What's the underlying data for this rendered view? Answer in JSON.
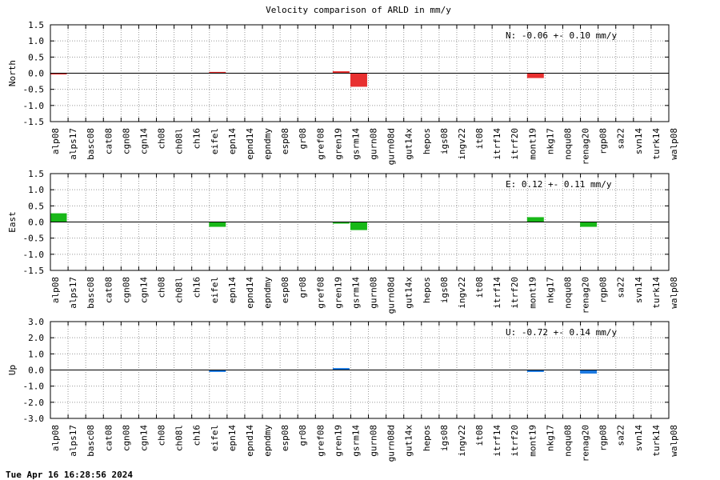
{
  "title": "Velocity comparison of ARLD in mm/y",
  "timestamp": "Tue Apr 16 16:28:56 2024",
  "chart_data": [
    {
      "type": "bar",
      "ylabel": "North",
      "summary": "N:  -0.06 +-  0.10 mm/y",
      "color": "#e83030",
      "ylim": [
        -1.5,
        1.5
      ],
      "yticks": [
        -1.5,
        -1.0,
        -0.5,
        0.0,
        0.5,
        1.0,
        1.5
      ],
      "ytick_labels": [
        "-1.5",
        "-1.0",
        "-0.5",
        "0.0",
        "0.5",
        "1.0",
        "1.5"
      ],
      "grid": true,
      "categories": [
        "alp08",
        "alps17",
        "basc08",
        "cat08",
        "cgn08",
        "cgn14",
        "ch08",
        "ch08l",
        "ch16",
        "eifel",
        "epn14",
        "epnd14",
        "epndmy",
        "esp08",
        "gr08",
        "gref08",
        "gren19",
        "gsrm14",
        "gurn08",
        "gurn08d",
        "gut14x",
        "hepos",
        "igs08",
        "ingv22",
        "it08",
        "itrf14",
        "itrf20",
        "mont19",
        "nkg17",
        "noqu08",
        "renag20",
        "rgp08",
        "sa22",
        "svn14",
        "turk14",
        "walp08"
      ],
      "values": [
        -0.04,
        0,
        0,
        0,
        0,
        0,
        0,
        0,
        0,
        0.04,
        0,
        0,
        0,
        0,
        0,
        0,
        0.06,
        -0.42,
        0,
        0,
        0,
        0,
        0,
        0,
        0,
        0,
        0,
        -0.15,
        0,
        0,
        0,
        0,
        0,
        0,
        0,
        0
      ]
    },
    {
      "type": "bar",
      "ylabel": "East",
      "summary": "E:   0.12 +-  0.11 mm/y",
      "color": "#18b818",
      "ylim": [
        -1.5,
        1.5
      ],
      "yticks": [
        -1.5,
        -1.0,
        -0.5,
        0.0,
        0.5,
        1.0,
        1.5
      ],
      "ytick_labels": [
        "-1.5",
        "-1.0",
        "-0.5",
        "0.0",
        "0.5",
        "1.0",
        "1.5"
      ],
      "grid": true,
      "categories": [
        "alp08",
        "alps17",
        "basc08",
        "cat08",
        "cgn08",
        "cgn14",
        "ch08",
        "ch08l",
        "ch16",
        "eifel",
        "epn14",
        "epnd14",
        "epndmy",
        "esp08",
        "gr08",
        "gref08",
        "gren19",
        "gsrm14",
        "gurn08",
        "gurn08d",
        "gut14x",
        "hepos",
        "igs08",
        "ingv22",
        "it08",
        "itrf14",
        "itrf20",
        "mont19",
        "nkg17",
        "noqu08",
        "renag20",
        "rgp08",
        "sa22",
        "svn14",
        "turk14",
        "walp08"
      ],
      "values": [
        0.27,
        0,
        0,
        0,
        0,
        0,
        0,
        0,
        0,
        -0.15,
        0,
        0,
        0,
        0,
        0,
        0,
        -0.05,
        -0.25,
        0,
        0,
        0,
        0,
        0,
        0,
        0,
        0,
        0,
        0.15,
        0,
        0,
        -0.15,
        0,
        0,
        0,
        0,
        0
      ]
    },
    {
      "type": "bar",
      "ylabel": "Up",
      "summary": "U:  -0.72 +-  0.14 mm/y",
      "color": "#1a78e0",
      "ylim": [
        -3.0,
        3.0
      ],
      "yticks": [
        -3.0,
        -2.0,
        -1.0,
        0.0,
        1.0,
        2.0,
        3.0
      ],
      "ytick_labels": [
        "-3.0",
        "-2.0",
        "-1.0",
        "0.0",
        "1.0",
        "2.0",
        "3.0"
      ],
      "grid": true,
      "categories": [
        "alp08",
        "alps17",
        "basc08",
        "cat08",
        "cgn08",
        "cgn14",
        "ch08",
        "ch08l",
        "ch16",
        "eifel",
        "epn14",
        "epnd14",
        "epndmy",
        "esp08",
        "gr08",
        "gref08",
        "gren19",
        "gsrm14",
        "gurn08",
        "gurn08d",
        "gut14x",
        "hepos",
        "igs08",
        "ingv22",
        "it08",
        "itrf14",
        "itrf20",
        "mont19",
        "nkg17",
        "noqu08",
        "renag20",
        "rgp08",
        "sa22",
        "svn14",
        "turk14",
        "walp08"
      ],
      "values": [
        0,
        0,
        0,
        0,
        0,
        0,
        0,
        0,
        0,
        -0.12,
        0,
        0,
        0,
        0,
        0,
        0,
        0.12,
        0,
        0,
        0,
        0,
        0,
        0,
        0,
        0,
        0,
        0,
        -0.12,
        0,
        0,
        -0.22,
        0,
        0,
        0,
        0,
        0
      ]
    }
  ]
}
